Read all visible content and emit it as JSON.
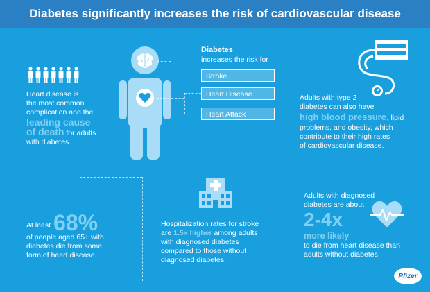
{
  "header": {
    "title": "Diabetes significantly increases the risk of cardiovascular disease"
  },
  "colors": {
    "header_bg": "#2b7fc3",
    "page_bg": "#1a9fde",
    "highlight": "#7fd1f4",
    "figure": "#a9dcf6"
  },
  "risk": {
    "title": "Diabetes",
    "subtitle": "increases the risk for",
    "items": [
      "Stroke",
      "Heart Disease",
      "Heart Attack"
    ]
  },
  "left_top": {
    "line1": "Heart disease is",
    "line2": "the most common",
    "line3": "complication and the",
    "highlight1": "leading cause",
    "highlight2": "of death",
    "rest": "for adults",
    "line_last": "with diabetes."
  },
  "right_top": {
    "line1": "Adults with type 2",
    "line2": "diabetes can also have",
    "highlight": "high blood pressure,",
    "after_highlight": "lipid",
    "line4": "problems, and obesity, which",
    "line5": "contribute to their high rates",
    "line6": "of cardiovascular disease."
  },
  "left_bottom": {
    "prefix": "At least",
    "percent": "68%",
    "line2": "of people aged 65+ with",
    "line3": "diabetes die from some",
    "line4": "form of heart disease."
  },
  "middle_bottom": {
    "line1": "Hospitalization rates for stroke",
    "line2_pre": "are",
    "line2_hl": "1.5x higher",
    "line2_post": "among adults",
    "line3": "with diagnosed diabetes",
    "line4": "compared to those without",
    "line5": "diagnosed diabetes."
  },
  "right_bottom": {
    "line1": "Adults with diagnosed",
    "line2": "diabetes are about",
    "big": "2-4x",
    "more": "more likely",
    "line4": "to die from heart disease than",
    "line5": "adults without diabetes."
  },
  "logo": {
    "text": "Pfizer"
  },
  "icons": {
    "people": "people-row-icon",
    "human": "human-figure-icon",
    "brain": "brain-icon",
    "heart": "heart-icon",
    "bp": "blood-pressure-monitor-icon",
    "hospital": "hospital-icon",
    "heartbeat": "heartbeat-icon"
  }
}
